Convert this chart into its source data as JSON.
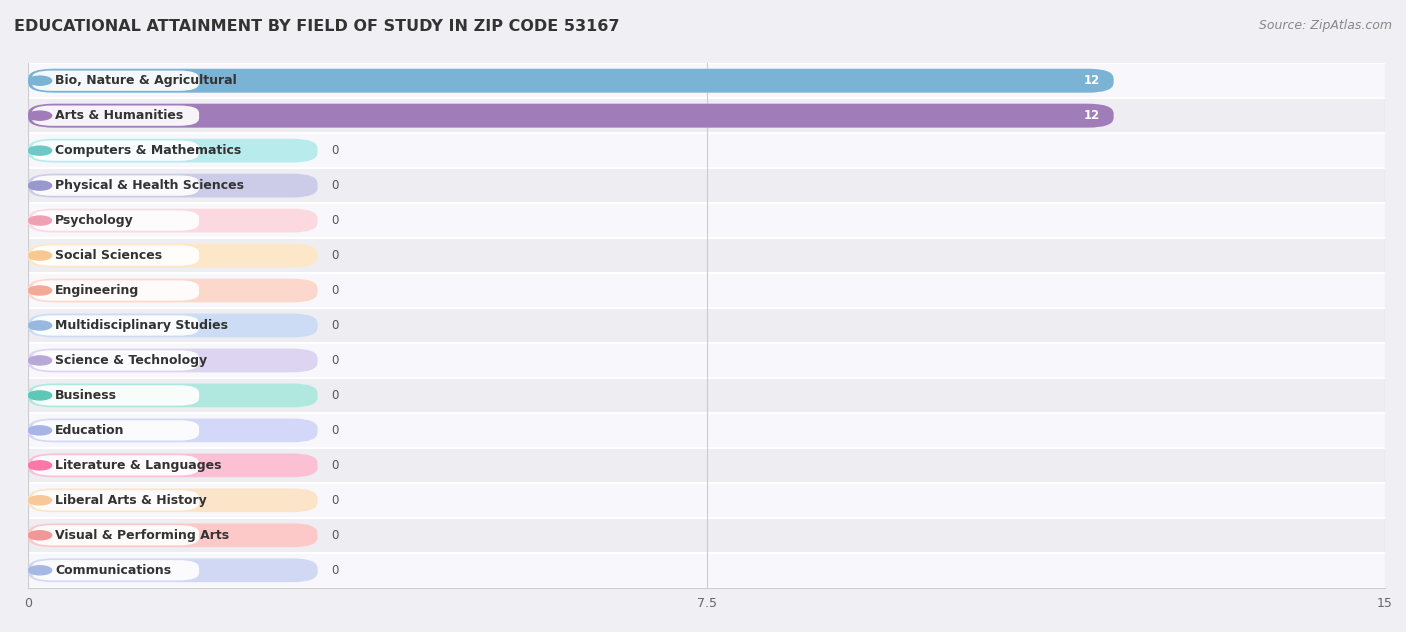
{
  "title": "EDUCATIONAL ATTAINMENT BY FIELD OF STUDY IN ZIP CODE 53167",
  "source": "Source: ZipAtlas.com",
  "categories": [
    "Bio, Nature & Agricultural",
    "Arts & Humanities",
    "Computers & Mathematics",
    "Physical & Health Sciences",
    "Psychology",
    "Social Sciences",
    "Engineering",
    "Multidisciplinary Studies",
    "Science & Technology",
    "Business",
    "Education",
    "Literature & Languages",
    "Liberal Arts & History",
    "Visual & Performing Arts",
    "Communications"
  ],
  "values": [
    12,
    12,
    0,
    0,
    0,
    0,
    0,
    0,
    0,
    0,
    0,
    0,
    0,
    0,
    0
  ],
  "bar_colors": [
    "#7ab3d4",
    "#a07db8",
    "#6ec8c8",
    "#9898cc",
    "#f0a0b4",
    "#f8c890",
    "#f4a898",
    "#98b8e0",
    "#b8a8d8",
    "#5ec8b8",
    "#a8b4e8",
    "#f878a8",
    "#f8c898",
    "#f09898",
    "#a8b8e4"
  ],
  "bar_bg_colors": [
    "#c8dff0",
    "#d4bce8",
    "#b8ecec",
    "#cccce8",
    "#fcd8e0",
    "#fce8c8",
    "#fcd8cc",
    "#ccdcf4",
    "#dcd4f0",
    "#b0e8e0",
    "#d4d8f8",
    "#fcc0d4",
    "#fce4c8",
    "#fcc8c8",
    "#d0d8f4"
  ],
  "xlim": [
    0,
    15
  ],
  "xticks": [
    0,
    7.5,
    15
  ],
  "background_color": "#f0f0f4",
  "row_bg_even": "#f8f8fc",
  "row_bg_odd": "#ededf2",
  "min_bar_display": 3.2,
  "title_fontsize": 11.5,
  "source_fontsize": 9,
  "label_fontsize": 9,
  "value_fontsize": 8.5
}
